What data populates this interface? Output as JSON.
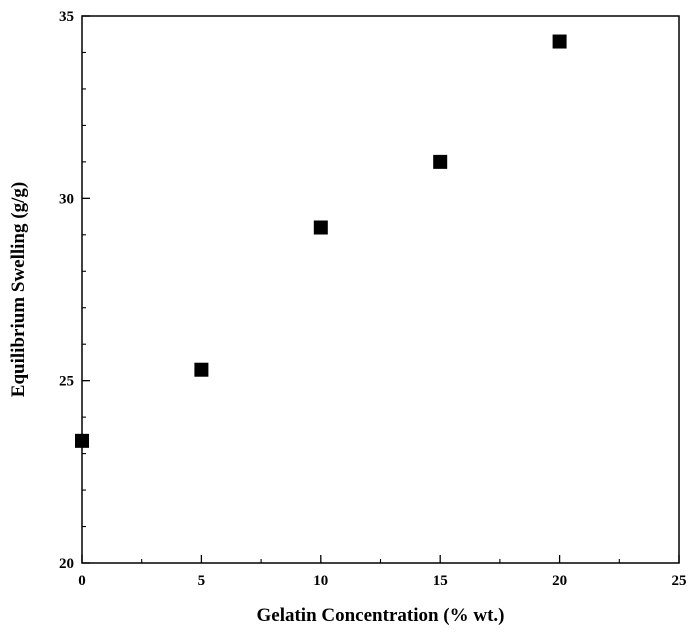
{
  "chart_data": {
    "type": "scatter",
    "title": "",
    "xlabel": "Gelatin Concentration (% wt.)",
    "ylabel": "Equilibrium Swelling (g/g)",
    "xlim": [
      0,
      25
    ],
    "ylim": [
      20,
      35
    ],
    "xticks": [
      0,
      5,
      10,
      15,
      20,
      25
    ],
    "yticks": [
      20,
      25,
      30,
      35
    ],
    "grid": false,
    "legend": "none",
    "marker": "square",
    "marker_color": "#000000",
    "series": [
      {
        "x": [
          0,
          5,
          10,
          15,
          20
        ],
        "y": [
          23.35,
          25.3,
          29.2,
          31.0,
          34.3
        ]
      }
    ]
  }
}
